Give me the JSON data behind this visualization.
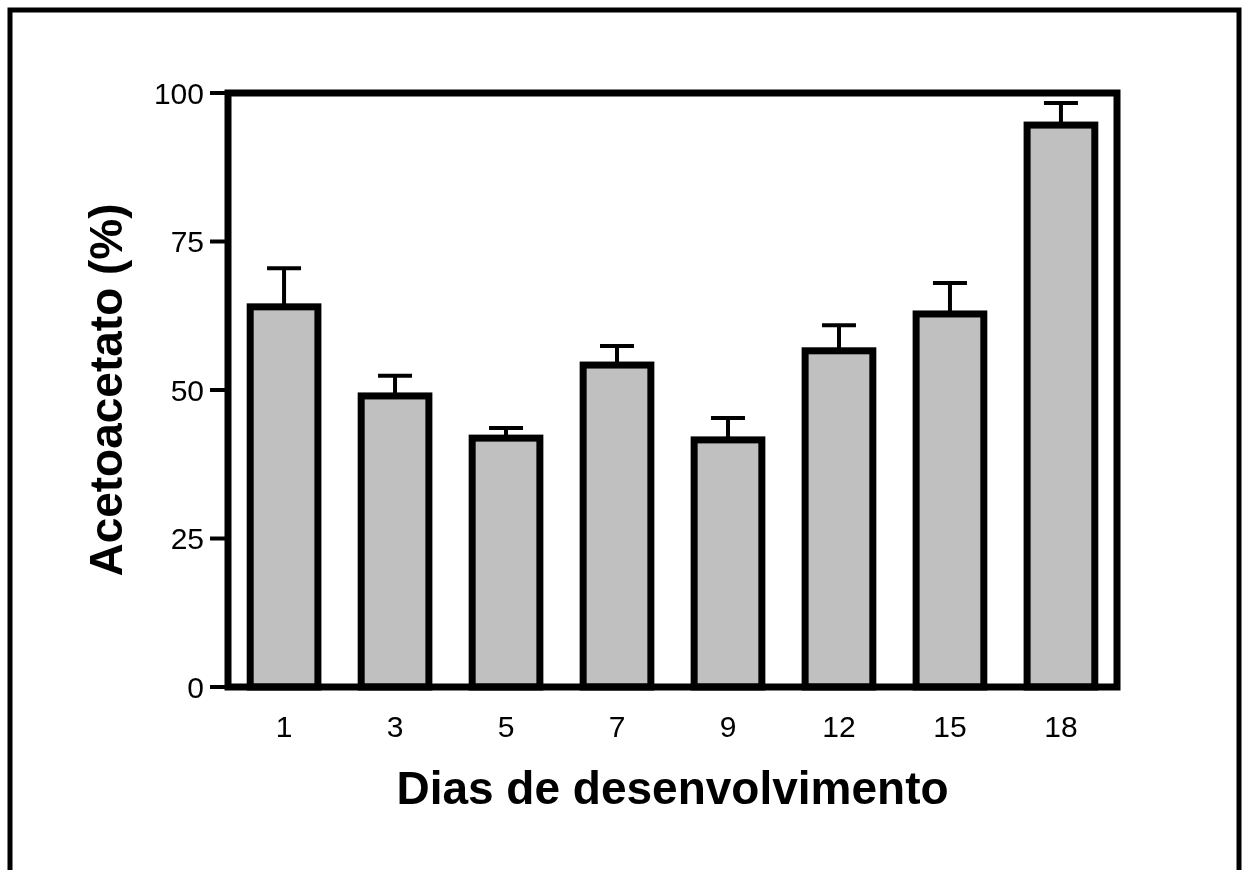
{
  "chart_data": {
    "type": "bar",
    "xlabel": "Dias de desenvolvimento",
    "ylabel": "Acetoacetato (%)",
    "categories": [
      "1",
      "3",
      "5",
      "7",
      "9",
      "12",
      "15",
      "18"
    ],
    "values": [
      64.0,
      49.0,
      41.9,
      54.2,
      41.6,
      56.6,
      62.8,
      94.6
    ],
    "errors": [
      6.5,
      3.4,
      1.7,
      3.2,
      3.7,
      4.3,
      5.2,
      3.7
    ],
    "color": "#c0c0c0",
    "ylim": [
      0,
      100
    ],
    "yticks": [
      0,
      25,
      50,
      75,
      100
    ],
    "grid": false
  }
}
